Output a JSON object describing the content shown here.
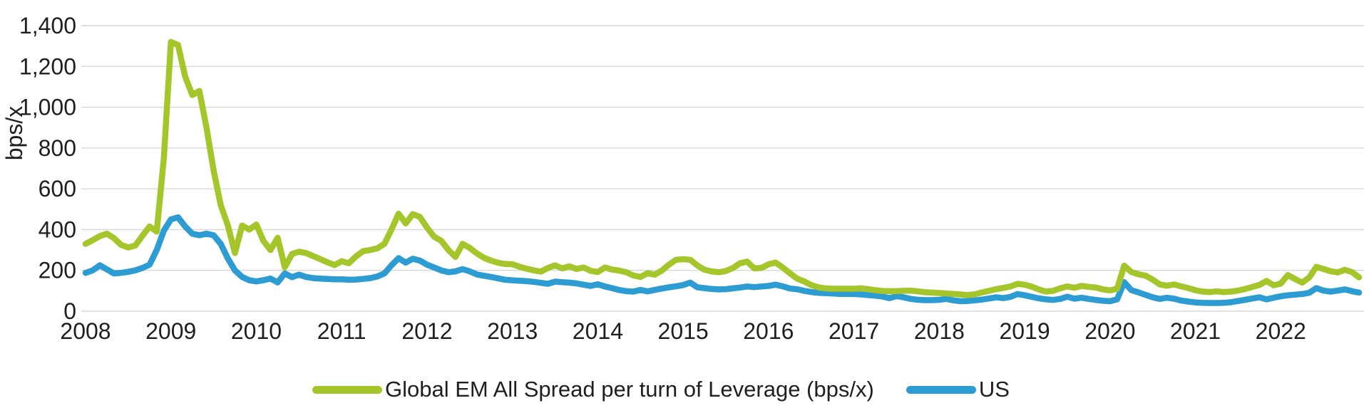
{
  "chart_data": {
    "type": "line",
    "title": "",
    "ylabel": "bps/x",
    "xlabel": "",
    "ylim": [
      0,
      1400
    ],
    "grid": "horizontal",
    "legend_position": "bottom-center",
    "frequency": "monthly",
    "x_start": "2008-01",
    "x_end": "2022-12",
    "y_ticks": [
      0,
      200,
      400,
      600,
      800,
      1000,
      1200,
      1400
    ],
    "y_tick_labels": [
      "0",
      "200",
      "400",
      "600",
      "800",
      "1,000",
      "1,200",
      "1,400"
    ],
    "x_tick_labels": [
      "2008",
      "2009",
      "2010",
      "2011",
      "2012",
      "2013",
      "2014",
      "2015",
      "2016",
      "2017",
      "2018",
      "2019",
      "2020",
      "2021",
      "2022"
    ],
    "series": [
      {
        "name": "Global EM All Spread per turn of Leverage (bps/x)",
        "color": "#a5c62b",
        "values": [
          330,
          348,
          368,
          380,
          358,
          325,
          312,
          322,
          370,
          415,
          390,
          750,
          1320,
          1305,
          1150,
          1060,
          1080,
          900,
          690,
          520,
          420,
          285,
          420,
          400,
          425,
          345,
          300,
          360,
          215,
          280,
          292,
          285,
          270,
          255,
          240,
          226,
          245,
          235,
          268,
          294,
          300,
          308,
          330,
          400,
          478,
          430,
          476,
          462,
          410,
          365,
          345,
          300,
          266,
          330,
          310,
          283,
          262,
          248,
          237,
          231,
          230,
          218,
          208,
          200,
          194,
          212,
          225,
          210,
          220,
          207,
          214,
          198,
          192,
          214,
          204,
          199,
          191,
          175,
          168,
          186,
          179,
          199,
          228,
          252,
          255,
          252,
          224,
          203,
          195,
          191,
          197,
          212,
          235,
          243,
          210,
          212,
          230,
          238,
          214,
          186,
          160,
          146,
          128,
          117,
          112,
          110,
          110,
          110,
          110,
          112,
          108,
          103,
          99,
          98,
          98,
          100,
          101,
          97,
          93,
          91,
          89,
          87,
          85,
          82,
          79,
          83,
          92,
          100,
          108,
          114,
          121,
          134,
          130,
          120,
          106,
          96,
          100,
          112,
          121,
          115,
          124,
          119,
          116,
          107,
          102,
          110,
          223,
          192,
          181,
          174,
          155,
          131,
          125,
          131,
          122,
          113,
          103,
          96,
          94,
          97,
          94,
          96,
          101,
          109,
          119,
          129,
          148,
          127,
          135,
          177,
          158,
          140,
          165,
          217,
          207,
          196,
          190,
          203,
          192,
          166
        ]
      },
      {
        "name": "US",
        "color": "#2d9cd3",
        "values": [
          188,
          200,
          225,
          205,
          185,
          188,
          193,
          200,
          212,
          228,
          300,
          395,
          450,
          460,
          415,
          380,
          372,
          380,
          372,
          330,
          258,
          200,
          168,
          152,
          146,
          152,
          160,
          141,
          185,
          167,
          179,
          168,
          162,
          160,
          158,
          156,
          156,
          154,
          155,
          158,
          162,
          170,
          185,
          225,
          260,
          238,
          257,
          248,
          228,
          214,
          200,
          191,
          195,
          206,
          195,
          180,
          174,
          168,
          161,
          154,
          151,
          149,
          147,
          144,
          139,
          134,
          145,
          142,
          140,
          136,
          130,
          124,
          132,
          121,
          113,
          104,
          98,
          96,
          104,
          97,
          104,
          111,
          117,
          122,
          128,
          140,
          117,
          113,
          109,
          107,
          108,
          112,
          116,
          121,
          118,
          121,
          124,
          130,
          122,
          111,
          108,
          100,
          94,
          90,
          88,
          87,
          85,
          84,
          84,
          82,
          79,
          76,
          72,
          64,
          74,
          68,
          60,
          56,
          54,
          54,
          56,
          60,
          53,
          49,
          50,
          53,
          57,
          62,
          68,
          64,
          70,
          84,
          78,
          70,
          63,
          58,
          55,
          60,
          71,
          61,
          66,
          60,
          55,
          51,
          49,
          58,
          142,
          103,
          92,
          80,
          68,
          60,
          66,
          61,
          52,
          47,
          43,
          41,
          40,
          40,
          41,
          44,
          50,
          56,
          62,
          68,
          58,
          66,
          73,
          78,
          81,
          84,
          90,
          113,
          101,
          96,
          101,
          107,
          98,
          91
        ]
      }
    ],
    "colors": {
      "axis_text": "#1f1f1f",
      "gridline": "#d7d7d7",
      "background": "#ffffff"
    }
  }
}
